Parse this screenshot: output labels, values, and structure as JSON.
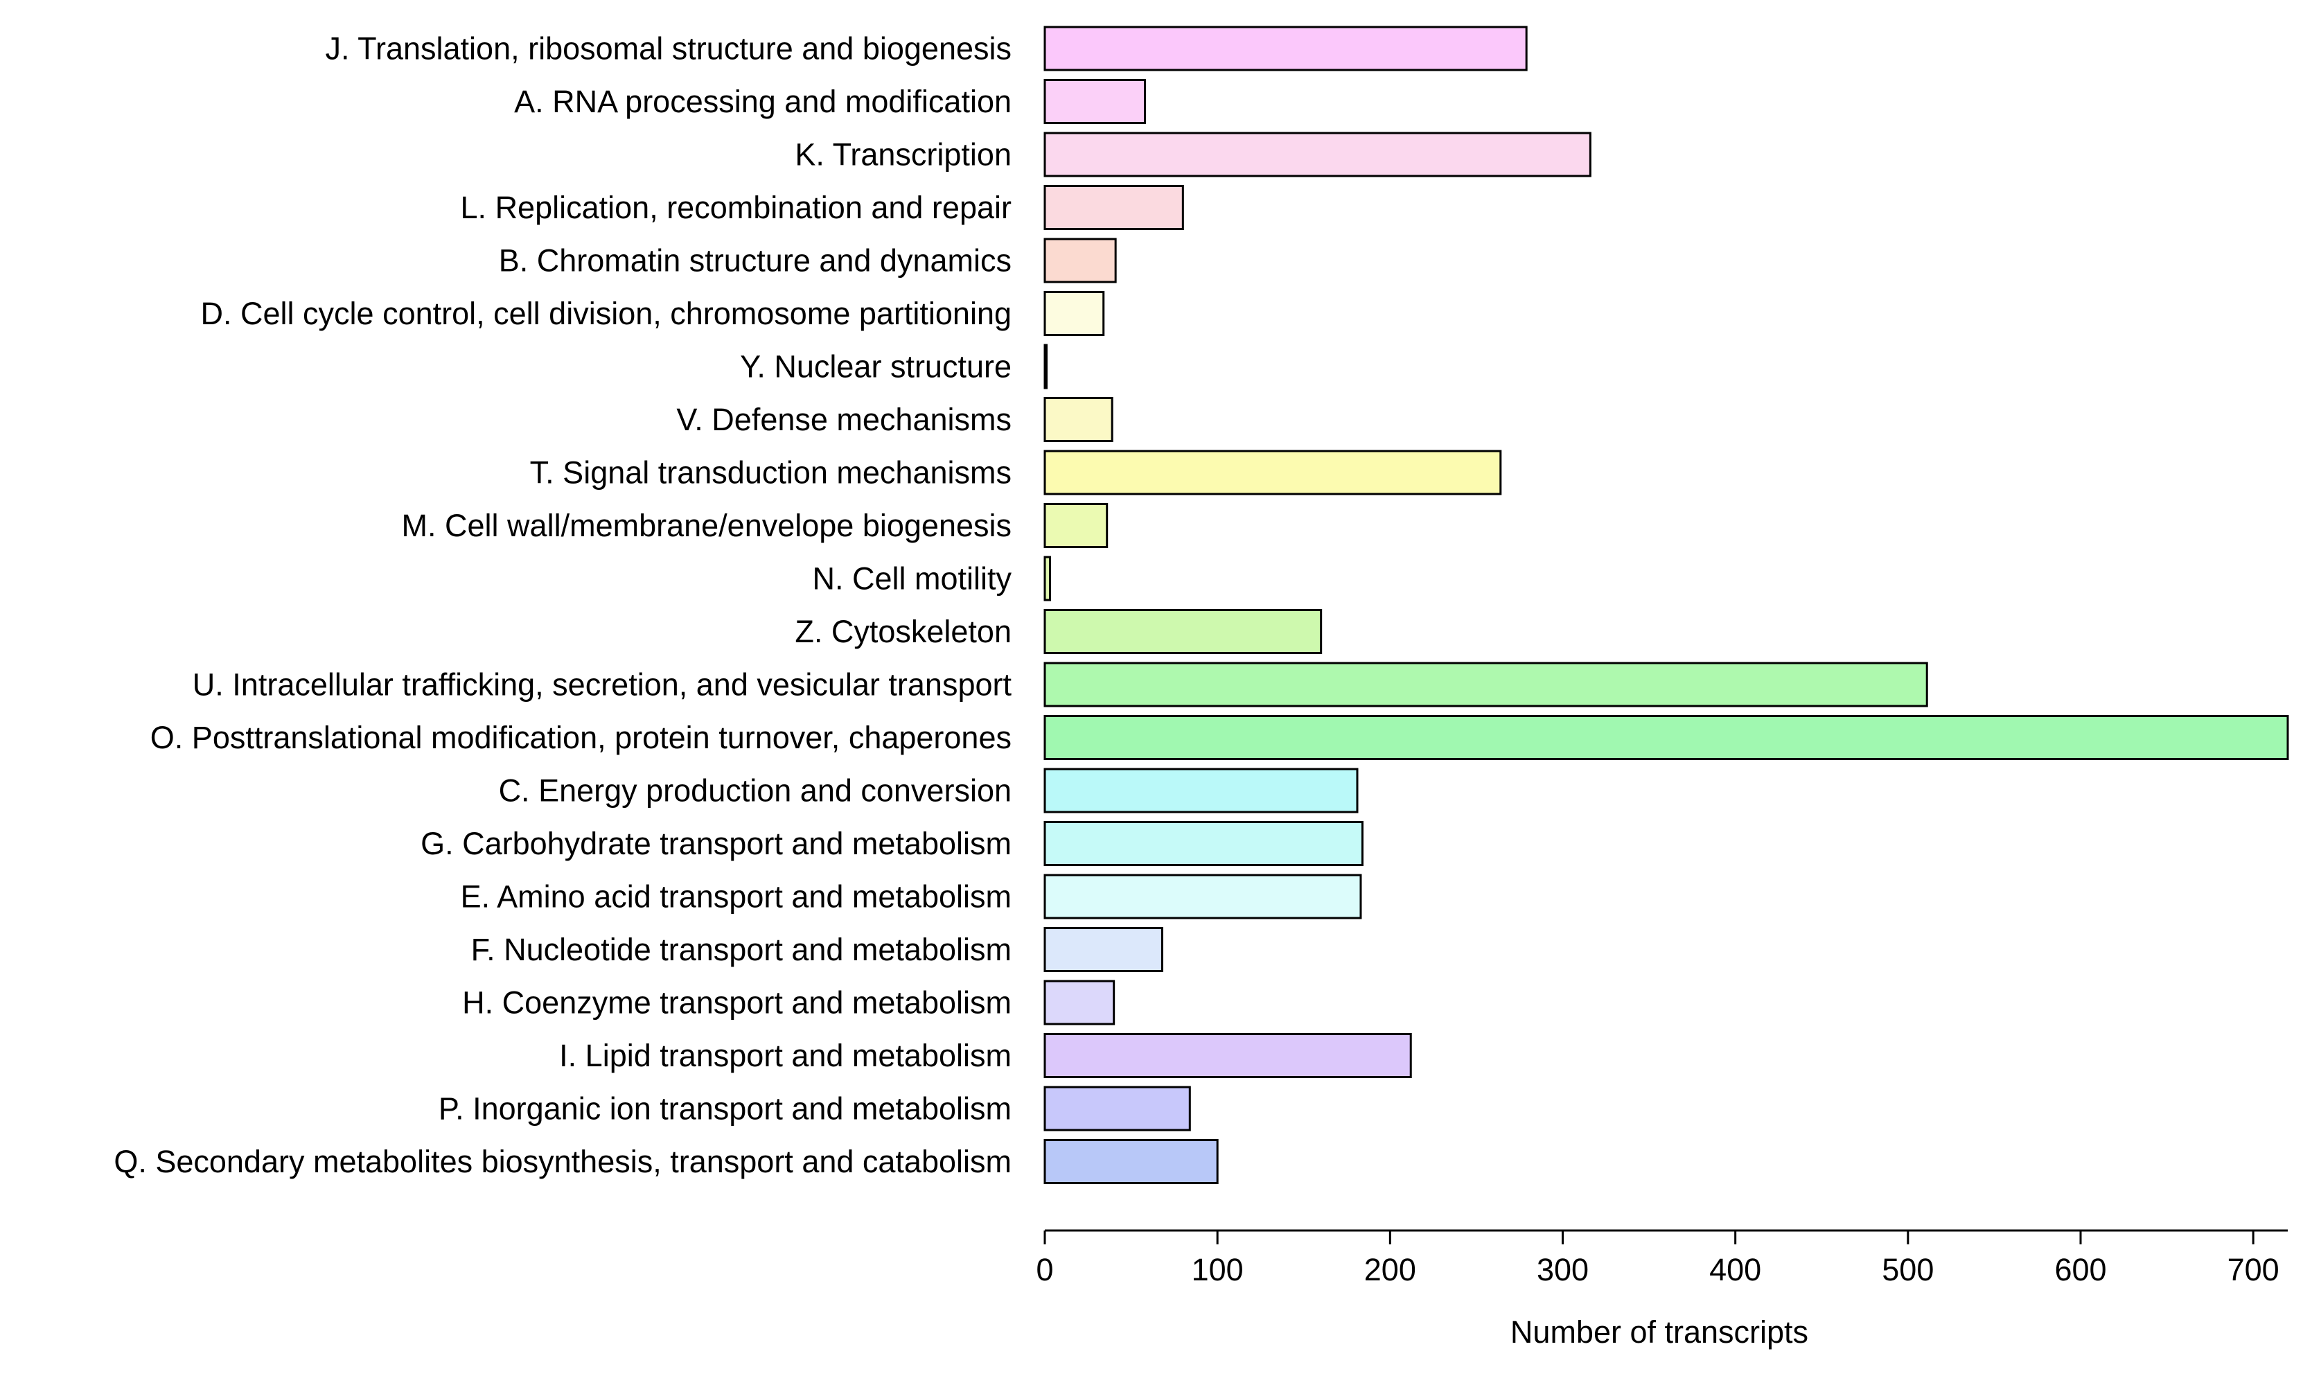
{
  "chart_data": {
    "type": "bar",
    "orientation": "horizontal",
    "title": "",
    "xlabel": "Number of transcripts",
    "ylabel": "",
    "xlim": [
      0,
      720
    ],
    "xticks": [
      0,
      100,
      200,
      300,
      400,
      500,
      600,
      700
    ],
    "grid": false,
    "legend": "none",
    "categories": [
      "J. Translation, ribosomal structure and biogenesis",
      "A. RNA processing and modification",
      "K. Transcription",
      "L. Replication, recombination and repair",
      "B. Chromatin structure and dynamics",
      "D. Cell cycle control, cell division, chromosome partitioning",
      "Y. Nuclear structure",
      "V. Defense mechanisms",
      "T. Signal transduction mechanisms",
      "M. Cell wall/membrane/envelope biogenesis",
      "N. Cell motility",
      "Z. Cytoskeleton",
      "U. Intracellular trafficking, secretion, and vesicular transport",
      "O. Posttranslational modification, protein turnover, chaperones",
      "C. Energy production and conversion",
      "G. Carbohydrate transport and metabolism",
      "E. Amino acid transport and metabolism",
      "F. Nucleotide transport and metabolism",
      "H. Coenzyme transport and metabolism",
      "I. Lipid transport and metabolism",
      "P. Inorganic ion transport and metabolism",
      "Q. Secondary metabolites biosynthesis, transport and catabolism"
    ],
    "values": [
      279,
      58,
      316,
      80,
      41,
      34,
      1,
      39,
      264,
      36,
      3,
      160,
      511,
      720,
      181,
      184,
      183,
      68,
      40,
      212,
      84,
      100
    ],
    "colors": [
      "#FBC8FB",
      "#FBD0F8",
      "#FBD8EE",
      "#FBDAE0",
      "#FBDAD0",
      "#FDFCE0",
      "#FBF9D2",
      "#FBF9C6",
      "#FCFBB0",
      "#EBFAB2",
      "#E2F9B2",
      "#CEF9AE",
      "#AEF9AE",
      "#A0F8B0",
      "#BAF9F9",
      "#C6FAF8",
      "#DCFCFB",
      "#DCE8FB",
      "#DCD8FB",
      "#DCC8FB",
      "#C8C8FB",
      "#B8C8F8"
    ]
  }
}
